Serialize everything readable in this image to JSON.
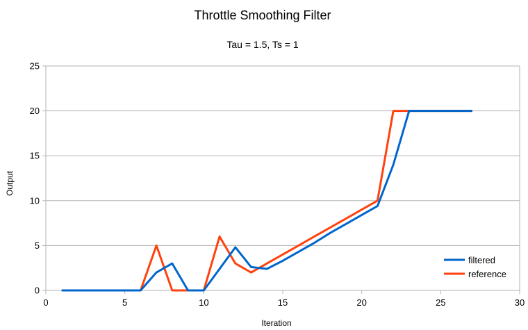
{
  "chart_data": {
    "type": "line",
    "title": "Throttle Smoothing Filter",
    "subtitle": "Tau = 1.5, Ts = 1",
    "xlabel": "Iteration",
    "ylabel": "Output",
    "xlim": [
      0,
      30
    ],
    "ylim": [
      0,
      25
    ],
    "xticks": [
      0,
      5,
      10,
      15,
      20,
      25,
      30
    ],
    "yticks": [
      0,
      5,
      10,
      15,
      20,
      25
    ],
    "grid": "horizontal",
    "legend_position": "bottom-right",
    "series": [
      {
        "name": "filtered",
        "color": "#0066cc",
        "x": [
          1,
          2,
          3,
          4,
          5,
          6,
          7,
          8,
          9,
          10,
          11,
          12,
          13,
          14,
          15,
          16,
          17,
          18,
          19,
          20,
          21,
          22,
          23,
          24,
          25,
          26,
          27
        ],
        "y": [
          0,
          0,
          0,
          0,
          0,
          0,
          2,
          3,
          0,
          0,
          2.4,
          4.8,
          2.6,
          2.4,
          3.3,
          4.3,
          5.3,
          6.4,
          7.4,
          8.4,
          9.4,
          14,
          20,
          20,
          20,
          20,
          20
        ]
      },
      {
        "name": "reference",
        "color": "#ff420e",
        "x": [
          1,
          2,
          3,
          4,
          5,
          6,
          7,
          8,
          9,
          10,
          11,
          12,
          13,
          14,
          15,
          16,
          17,
          18,
          19,
          20,
          21,
          22,
          23,
          24,
          25,
          26,
          27
        ],
        "y": [
          0,
          0,
          0,
          0,
          0,
          0,
          5,
          0,
          0,
          0,
          6,
          3,
          2,
          3,
          4,
          5,
          6,
          7,
          8,
          9,
          10,
          20,
          20,
          20,
          20,
          20,
          20
        ]
      }
    ]
  }
}
